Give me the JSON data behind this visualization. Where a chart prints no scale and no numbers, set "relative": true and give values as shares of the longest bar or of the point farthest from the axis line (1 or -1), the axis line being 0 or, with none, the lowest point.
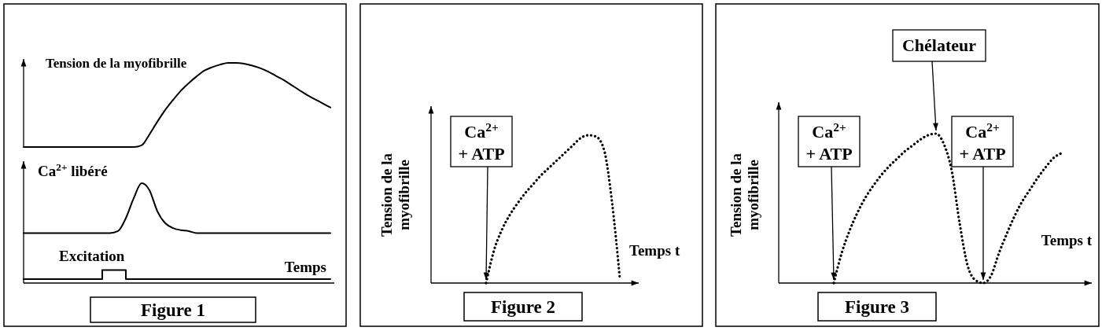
{
  "chart_data": [
    {
      "type": "line",
      "ylabel": "Tension de la myofibrille",
      "relative": true,
      "line_style": "solid",
      "categories": [
        null,
        null,
        null,
        null,
        null,
        null,
        null,
        null,
        null,
        null,
        null,
        null,
        null,
        null,
        null,
        null,
        null,
        null,
        null,
        null,
        null,
        null,
        null,
        null,
        null,
        null,
        null,
        null,
        null,
        null,
        null,
        null,
        null,
        null,
        null,
        null,
        null,
        null,
        null,
        null
      ],
      "series": [
        {
          "color": "#000000",
          "values": [
            0,
            0,
            0,
            0,
            0,
            0,
            0,
            0,
            0,
            0,
            0,
            0,
            0,
            0,
            0,
            0.02,
            0.15,
            0.3,
            0.44,
            0.56,
            0.67,
            0.76,
            0.84,
            0.91,
            0.95,
            0.98,
            1,
            1,
            0.99,
            0.97,
            0.94,
            0.9,
            0.85,
            0.8,
            0.74,
            0.68,
            0.62,
            0.57,
            0.52,
            0.47
          ]
        }
      ]
    },
    {
      "type": "line",
      "title": "Figure 1",
      "ylabel": "Ca$^{2+}$ libéré",
      "xlabel": "Temps",
      "annotations": [
        "Excitation"
      ],
      "relative": true,
      "line_style": "solid",
      "categories": [
        null,
        null,
        null,
        null,
        null,
        null,
        null,
        null,
        null,
        null,
        null,
        null,
        null,
        null,
        null,
        null,
        null,
        null,
        null,
        null,
        null,
        null,
        null,
        null,
        null,
        null,
        null,
        null,
        null,
        null,
        null,
        null,
        null,
        null,
        null,
        null,
        null,
        null,
        null,
        null
      ],
      "series": [
        {
          "color": "#000000",
          "values": [
            0.5,
            0.5,
            0.5,
            0.5,
            0.5,
            0.5,
            0.5,
            0.5,
            0.5,
            0.5,
            0.5,
            0.5,
            0.52,
            0.65,
            0.85,
            1,
            0.93,
            0.72,
            0.6,
            0.55,
            0.53,
            0.52,
            0.5,
            0.5,
            0.5,
            0.5,
            0.5,
            0.5,
            0.5,
            0.5,
            0.5,
            0.5,
            0.5,
            0.5,
            0.5,
            0.5,
            0.5,
            0.5,
            0.5,
            0.5
          ]
        },
        {
          "type": "step",
          "color": "#000000",
          "values": [
            0.04,
            0.04,
            0.04,
            0.04,
            0.04,
            0.04,
            0.04,
            0.04,
            0.04,
            0.04,
            0.13,
            0.13,
            0.13,
            0.04,
            0.04,
            0.04,
            0.04,
            0.04,
            0.04,
            0.04,
            0.04,
            0.04,
            0.04,
            0.04,
            0.04,
            0.04,
            0.04,
            0.04,
            0.04,
            0.04,
            0.04,
            0.04,
            0.04,
            0.04,
            0.04,
            0.04,
            0.04,
            0.04,
            0.04,
            0.04
          ]
        }
      ]
    },
    {
      "type": "line",
      "title": "Figure 2",
      "ylabel": "Tension de la myofibrille",
      "xlabel": "Temps t",
      "annotations": [
        "Ca$^{2+}$ + ATP"
      ],
      "relative": true,
      "line_style": "dotted",
      "categories": [
        null,
        null,
        null,
        null,
        null,
        null,
        null,
        null,
        null,
        null,
        null,
        null,
        null,
        null,
        null,
        null,
        null,
        null,
        null,
        null,
        null,
        null,
        null,
        null,
        null,
        null
      ],
      "series": [
        {
          "color": "#000000",
          "values": [
            null,
            null,
            null,
            null,
            null,
            null,
            null,
            0,
            0.22,
            0.36,
            0.46,
            0.54,
            0.61,
            0.67,
            0.73,
            0.78,
            0.83,
            0.88,
            0.93,
            0.98,
            1,
            0.99,
            0.9,
            0.55,
            0.03,
            null
          ]
        }
      ]
    },
    {
      "type": "line",
      "title": "Figure 3",
      "ylabel": "Tension de la myofibrille",
      "xlabel": "Temps t",
      "annotations": [
        "Ca$^{2+}$ + ATP",
        "Chélateur",
        "Ca$^{2+}$ + ATP"
      ],
      "relative": true,
      "line_style": "dotted",
      "categories": [
        null,
        null,
        null,
        null,
        null,
        null,
        null,
        null,
        null,
        null,
        null,
        null,
        null,
        null,
        null,
        null,
        null,
        null,
        null,
        null,
        null,
        null,
        null,
        null,
        null,
        null,
        null,
        null,
        null,
        null,
        null,
        null,
        null,
        null,
        null,
        null,
        null
      ],
      "series": [
        {
          "color": "#000000",
          "values": [
            null,
            null,
            null,
            null,
            null,
            null,
            null,
            0,
            0.2,
            0.35,
            0.47,
            0.57,
            0.65,
            0.72,
            0.78,
            0.83,
            0.88,
            0.92,
            0.96,
            0.99,
            1,
            0.93,
            0.75,
            0.4,
            0.12,
            0.02,
            0,
            0.05,
            0.2,
            0.33,
            0.45,
            0.55,
            0.63,
            0.71,
            0.78,
            0.84,
            0.87
          ]
        }
      ]
    }
  ]
}
